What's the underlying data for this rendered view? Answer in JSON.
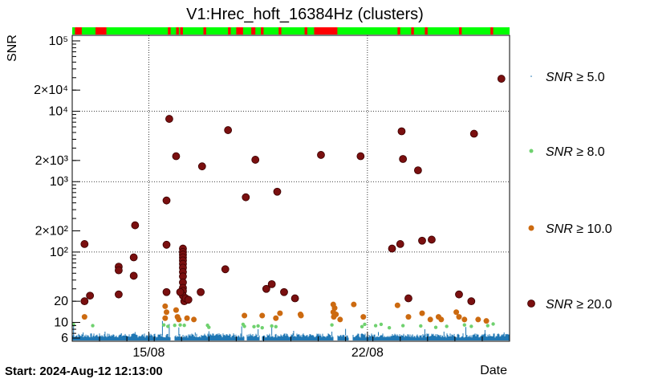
{
  "chart_data": {
    "type": "scatter",
    "title": "V1:Hrec_hoft_16384Hz (clusters)",
    "ylabel": "SNR",
    "xlabel": "Date",
    "start_label": "Start: 2024-Aug-12 12:13:00",
    "yscale": "log",
    "ylim": [
      5.4,
      120000
    ],
    "xlim_days": [
      0,
      16
    ],
    "y_ticks": [
      {
        "value": 6,
        "label": "6"
      },
      {
        "value": 10,
        "label": "10"
      },
      {
        "value": 20,
        "label": "20"
      },
      {
        "value": 100,
        "label": "10²"
      },
      {
        "value": 200,
        "label": "2×10²"
      },
      {
        "value": 1000,
        "label": "10³"
      },
      {
        "value": 2000,
        "label": "2×10³"
      },
      {
        "value": 10000,
        "label": "10⁴"
      },
      {
        "value": 20000,
        "label": "2×10⁴"
      },
      {
        "value": 100000,
        "label": "10⁵"
      }
    ],
    "x_ticks": [
      {
        "value": 2.8,
        "label": "15/08"
      },
      {
        "value": 10.8,
        "label": "22/08"
      }
    ],
    "grid": true,
    "legend_position": "right",
    "colors": {
      "snr5": "#1f77b4",
      "snr8": "#6fd16f",
      "snr10": "#cc6a10",
      "snr20": "#7a0f0f",
      "state_ok": "#00ff00",
      "state_bad": "#ff0000"
    },
    "state_bar_bad_intervals": [
      [
        0.1,
        0.35
      ],
      [
        0.85,
        1.25
      ],
      [
        3.5,
        3.6
      ],
      [
        3.8,
        3.9
      ],
      [
        3.95,
        4.05
      ],
      [
        4.8,
        4.9
      ],
      [
        5.7,
        5.8
      ],
      [
        6.0,
        6.25
      ],
      [
        6.55,
        6.7
      ],
      [
        6.9,
        7.0
      ],
      [
        7.55,
        7.65
      ],
      [
        8.5,
        8.6
      ],
      [
        8.85,
        9.7
      ],
      [
        11.9,
        12.0
      ],
      [
        12.4,
        12.5
      ],
      [
        12.9,
        13.0
      ],
      [
        14.15,
        14.25
      ],
      [
        15.3,
        15.4
      ]
    ],
    "series": [
      {
        "name": "SNR ≥ 5.0",
        "style": "dense",
        "density_spikes": [
          {
            "x": 0.05,
            "y": 9.2
          },
          {
            "x": 0.4,
            "y": 7.2
          },
          {
            "x": 1.2,
            "y": 7.4
          },
          {
            "x": 1.8,
            "y": 7.0
          },
          {
            "x": 2.3,
            "y": 7.3
          },
          {
            "x": 3.3,
            "y": 10.5
          },
          {
            "x": 3.55,
            "y": 9.5
          },
          {
            "x": 3.9,
            "y": 8.5
          },
          {
            "x": 4.5,
            "y": 7.2
          },
          {
            "x": 5.0,
            "y": 7.5
          },
          {
            "x": 6.2,
            "y": 8.8
          },
          {
            "x": 6.8,
            "y": 8.0
          },
          {
            "x": 7.3,
            "y": 8.6
          },
          {
            "x": 8.1,
            "y": 7.6
          },
          {
            "x": 9.5,
            "y": 7.4
          },
          {
            "x": 10.0,
            "y": 8.1
          },
          {
            "x": 11.2,
            "y": 7.3
          },
          {
            "x": 12.9,
            "y": 8.0
          },
          {
            "x": 13.6,
            "y": 7.4
          },
          {
            "x": 14.4,
            "y": 8.6
          },
          {
            "x": 15.1,
            "y": 7.8
          },
          {
            "x": 15.8,
            "y": 7.2
          }
        ]
      },
      {
        "name": "SNR ≥ 8.0",
        "points": [
          [
            0.05,
            9.3
          ],
          [
            0.75,
            9.0
          ],
          [
            3.35,
            9.2
          ],
          [
            3.5,
            8.8
          ],
          [
            3.75,
            9.1
          ],
          [
            3.95,
            9.2
          ],
          [
            4.1,
            9.1
          ],
          [
            4.95,
            9.1
          ],
          [
            5.0,
            8.5
          ],
          [
            6.25,
            9.4
          ],
          [
            6.3,
            8.8
          ],
          [
            6.65,
            8.7
          ],
          [
            6.8,
            8.9
          ],
          [
            6.95,
            8.4
          ],
          [
            7.3,
            8.9
          ],
          [
            7.45,
            8.7
          ],
          [
            9.5,
            9.2
          ],
          [
            10.6,
            8.7
          ],
          [
            10.7,
            9.4
          ],
          [
            11.1,
            9.0
          ],
          [
            11.3,
            9.4
          ],
          [
            11.6,
            8.4
          ],
          [
            12.1,
            9.0
          ],
          [
            12.75,
            8.9
          ],
          [
            13.3,
            8.5
          ],
          [
            13.7,
            8.8
          ],
          [
            14.35,
            9.2
          ],
          [
            14.6,
            8.8
          ],
          [
            15.2,
            9.0
          ],
          [
            15.4,
            9.5
          ]
        ]
      },
      {
        "name": "SNR ≥ 10.0",
        "points": [
          [
            0.45,
            12
          ],
          [
            3.4,
            17
          ],
          [
            3.45,
            14
          ],
          [
            3.4,
            11.5
          ],
          [
            3.8,
            15
          ],
          [
            3.85,
            12
          ],
          [
            3.9,
            11
          ],
          [
            4.2,
            11.5
          ],
          [
            4.45,
            11
          ],
          [
            6.3,
            12.5
          ],
          [
            6.95,
            12.5
          ],
          [
            7.6,
            13.5
          ],
          [
            7.45,
            11.5
          ],
          [
            8.35,
            13
          ],
          [
            8.37,
            12.5
          ],
          [
            9.55,
            18
          ],
          [
            9.6,
            16
          ],
          [
            9.55,
            14
          ],
          [
            9.65,
            13
          ],
          [
            9.57,
            12
          ],
          [
            9.8,
            11
          ],
          [
            10.3,
            18
          ],
          [
            10.65,
            12
          ],
          [
            11.9,
            17.5
          ],
          [
            12.3,
            12
          ],
          [
            12.8,
            13.5
          ],
          [
            13.1,
            11
          ],
          [
            13.4,
            12
          ],
          [
            13.5,
            11
          ],
          [
            14.05,
            14
          ],
          [
            14.15,
            12
          ],
          [
            14.35,
            11
          ],
          [
            14.85,
            11
          ],
          [
            15.15,
            10.5
          ]
        ]
      },
      {
        "name": "SNR ≥ 20.0",
        "points": [
          [
            0.45,
            130
          ],
          [
            0.45,
            20
          ],
          [
            0.65,
            24
          ],
          [
            1.7,
            62
          ],
          [
            1.7,
            55
          ],
          [
            1.7,
            25
          ],
          [
            2.25,
            84
          ],
          [
            2.25,
            46
          ],
          [
            2.3,
            240
          ],
          [
            3.45,
            127
          ],
          [
            3.45,
            27
          ],
          [
            3.45,
            540
          ],
          [
            3.55,
            7800
          ],
          [
            3.8,
            2300
          ],
          [
            4.05,
            112
          ],
          [
            4.05,
            100
          ],
          [
            4.05,
            92
          ],
          [
            4.05,
            84
          ],
          [
            4.05,
            76
          ],
          [
            4.05,
            68
          ],
          [
            4.05,
            60
          ],
          [
            4.05,
            52
          ],
          [
            4.05,
            45
          ],
          [
            4.05,
            37
          ],
          [
            4.05,
            31
          ],
          [
            4.05,
            28
          ],
          [
            4.05,
            24
          ],
          [
            4.1,
            20
          ],
          [
            4.15,
            22
          ],
          [
            4.25,
            21
          ],
          [
            3.95,
            27
          ],
          [
            4.7,
            27
          ],
          [
            4.75,
            1650
          ],
          [
            5.6,
            57
          ],
          [
            5.7,
            5400
          ],
          [
            6.35,
            600
          ],
          [
            6.7,
            2050
          ],
          [
            7.1,
            30
          ],
          [
            7.3,
            35
          ],
          [
            7.5,
            720
          ],
          [
            7.75,
            27
          ],
          [
            8.15,
            22
          ],
          [
            9.1,
            2400
          ],
          [
            10.55,
            2300
          ],
          [
            11.7,
            112
          ],
          [
            12.0,
            130
          ],
          [
            12.05,
            5200
          ],
          [
            12.1,
            2100
          ],
          [
            12.3,
            22
          ],
          [
            12.65,
            1450
          ],
          [
            12.8,
            145
          ],
          [
            13.15,
            150
          ],
          [
            14.15,
            25
          ],
          [
            14.6,
            20
          ],
          [
            14.7,
            4800
          ],
          [
            15.7,
            29000
          ]
        ]
      }
    ]
  },
  "legend": [
    {
      "prefix": "SNR",
      "suffix": "≥ 5.0"
    },
    {
      "prefix": "SNR",
      "suffix": "≥ 8.0"
    },
    {
      "prefix": "SNR",
      "suffix": "≥ 10.0"
    },
    {
      "prefix": "SNR",
      "suffix": "≥ 20.0"
    }
  ]
}
